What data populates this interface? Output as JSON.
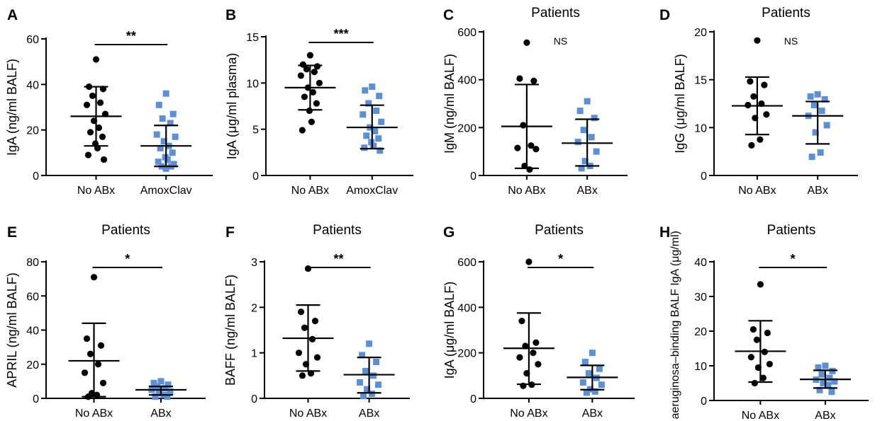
{
  "colors": {
    "group1": "#000000",
    "group2": "#5b8fd6",
    "axis": "#000000"
  },
  "chart_data": [
    {
      "panel": "A",
      "type": "scatter",
      "title": "",
      "ylabel": "IgA (ng/ml BALF)",
      "ylim": [
        0,
        60
      ],
      "yticks": [
        "0",
        "20",
        "40",
        "60"
      ],
      "categories": [
        "No ABx",
        "AmoxClav"
      ],
      "significance": "**",
      "series": [
        {
          "values": [
            51,
            39,
            38,
            35,
            32,
            31,
            27,
            24,
            21,
            19,
            17,
            14,
            12,
            9,
            7
          ],
          "mean": 26,
          "sd_low": 13,
          "sd_high": 39,
          "marker": "circle"
        },
        {
          "values": [
            36,
            31,
            27,
            25,
            23,
            18,
            17,
            15,
            13,
            12,
            10,
            8,
            7,
            6,
            5,
            4,
            4,
            3
          ],
          "mean": 13,
          "sd_low": 4,
          "sd_high": 22,
          "marker": "square"
        }
      ]
    },
    {
      "panel": "B",
      "type": "scatter",
      "title": "",
      "ylabel": "IgA (μg/ml plasma)",
      "ylim": [
        0,
        15
      ],
      "yticks": [
        "0",
        "5",
        "10",
        "15"
      ],
      "categories": [
        "No ABx",
        "AmoxClav"
      ],
      "significance": "***",
      "series": [
        {
          "values": [
            13,
            12,
            11.8,
            11.5,
            11.2,
            10.8,
            10,
            9.5,
            9,
            8.5,
            7.8,
            7,
            5.8,
            4.9
          ],
          "mean": 9.5,
          "sd_low": 7.1,
          "sd_high": 11.9,
          "marker": "circle"
        },
        {
          "values": [
            9.6,
            9.2,
            8.6,
            7.8,
            7.0,
            6.6,
            5.8,
            5.2,
            4.8,
            4.3,
            4.0,
            3.6,
            3.2,
            3.0,
            2.7
          ],
          "mean": 5.2,
          "sd_low": 2.9,
          "sd_high": 7.6,
          "marker": "square"
        }
      ]
    },
    {
      "panel": "C",
      "type": "scatter",
      "title": "Patients",
      "ylabel": "IgM (ng/ml BALF)",
      "ylim": [
        0,
        600
      ],
      "yticks": [
        "0",
        "200",
        "400",
        "600"
      ],
      "categories": [
        "No ABx",
        "ABx"
      ],
      "significance": "NS",
      "series": [
        {
          "values": [
            555,
            405,
            395,
            210,
            125,
            115,
            110,
            40,
            25
          ],
          "mean": 205,
          "sd_low": 30,
          "sd_high": 380,
          "marker": "circle"
        },
        {
          "values": [
            310,
            270,
            240,
            190,
            160,
            140,
            100,
            60,
            40,
            30
          ],
          "mean": 135,
          "sd_low": 40,
          "sd_high": 235,
          "marker": "square"
        }
      ]
    },
    {
      "panel": "D",
      "type": "scatter",
      "title": "Patients",
      "ylabel": "IgG (μg/ml BALF)",
      "ylim": [
        0,
        20
      ],
      "yticks": [
        "0",
        "10",
        "15",
        "20"
      ],
      "categories": [
        "No ABx",
        "ABx"
      ],
      "significance": "NS",
      "series": [
        {
          "values": [
            18.8,
            13.1,
            12.6,
            11.0,
            10.0,
            9.8,
            8.5,
            8.0,
            5.0,
            4.2
          ],
          "mean": 9.7,
          "sd_low": 5.7,
          "sd_high": 13.7,
          "marker": "circle"
        },
        {
          "values": [
            11.3,
            11.0,
            10.6,
            9.8,
            9.0,
            8.3,
            7.0,
            6.0,
            3.2,
            2.6
          ],
          "mean": 8.3,
          "sd_low": 4.4,
          "sd_high": 10.3,
          "marker": "square"
        }
      ]
    },
    {
      "panel": "E",
      "type": "scatter",
      "title": "Patients",
      "ylabel": "APRIL (ng/ml BALF)",
      "ylim": [
        0,
        80
      ],
      "yticks": [
        "0",
        "20",
        "40",
        "60",
        "80"
      ],
      "categories": [
        "No ABx",
        "ABx"
      ],
      "significance": "*",
      "series": [
        {
          "values": [
            71,
            35,
            31,
            26,
            20,
            15,
            9,
            3,
            2,
            1
          ],
          "mean": 22,
          "sd_low": 1,
          "sd_high": 44,
          "marker": "circle"
        },
        {
          "values": [
            10,
            9,
            8,
            7,
            6,
            5,
            4,
            3,
            2,
            1,
            1
          ],
          "mean": 5,
          "sd_low": 2,
          "sd_high": 7,
          "marker": "square"
        }
      ]
    },
    {
      "panel": "F",
      "type": "scatter",
      "title": "Patients",
      "ylabel": "BAFF (ng/ml BALF)",
      "ylim": [
        0,
        3
      ],
      "yticks": [
        "0",
        "1",
        "2",
        "3"
      ],
      "categories": [
        "No ABx",
        "ABx"
      ],
      "significance": "**",
      "series": [
        {
          "values": [
            2.85,
            1.9,
            1.7,
            1.55,
            1.3,
            1.0,
            0.9,
            0.75,
            0.55,
            0.5
          ],
          "mean": 1.32,
          "sd_low": 0.6,
          "sd_high": 2.05,
          "marker": "circle"
        },
        {
          "values": [
            1.2,
            0.95,
            0.8,
            0.6,
            0.5,
            0.35,
            0.3,
            0.2,
            0.1,
            0.05
          ],
          "mean": 0.52,
          "sd_low": 0.12,
          "sd_high": 0.9,
          "marker": "square"
        }
      ]
    },
    {
      "panel": "G",
      "type": "scatter",
      "title": "Patients",
      "ylabel": "IgA (μg/ml BALF)",
      "ylim": [
        0,
        600
      ],
      "yticks": [
        "0",
        "200",
        "400",
        "600"
      ],
      "categories": [
        "No ABx",
        "ABx"
      ],
      "significance": "*",
      "series": [
        {
          "values": [
            600,
            340,
            245,
            230,
            200,
            180,
            150,
            110,
            60,
            55
          ],
          "mean": 220,
          "sd_low": 62,
          "sd_high": 375,
          "marker": "circle"
        },
        {
          "values": [
            200,
            160,
            130,
            110,
            90,
            70,
            60,
            40,
            30,
            25
          ],
          "mean": 92,
          "sd_low": 38,
          "sd_high": 145,
          "marker": "square"
        }
      ]
    },
    {
      "panel": "H",
      "type": "scatter",
      "title": "Patients",
      "ylabel": "P. aeruginosa–binding BALF IgA (μg/ml)",
      "ylim": [
        0,
        40
      ],
      "yticks": [
        "0",
        "10",
        "20",
        "30",
        "40"
      ],
      "categories": [
        "No ABx",
        "ABx"
      ],
      "significance": "*",
      "series": [
        {
          "values": [
            33.5,
            20.5,
            19.5,
            17.5,
            14,
            12.5,
            10.5,
            9.5,
            6.5,
            5
          ],
          "mean": 14.2,
          "sd_low": 5.3,
          "sd_high": 23,
          "marker": "circle"
        },
        {
          "values": [
            10,
            9.5,
            8.5,
            7.5,
            6.5,
            6,
            5.5,
            5,
            4.5,
            3,
            2.5
          ],
          "mean": 6.1,
          "sd_low": 3.6,
          "sd_high": 8.7,
          "marker": "square"
        }
      ]
    }
  ]
}
